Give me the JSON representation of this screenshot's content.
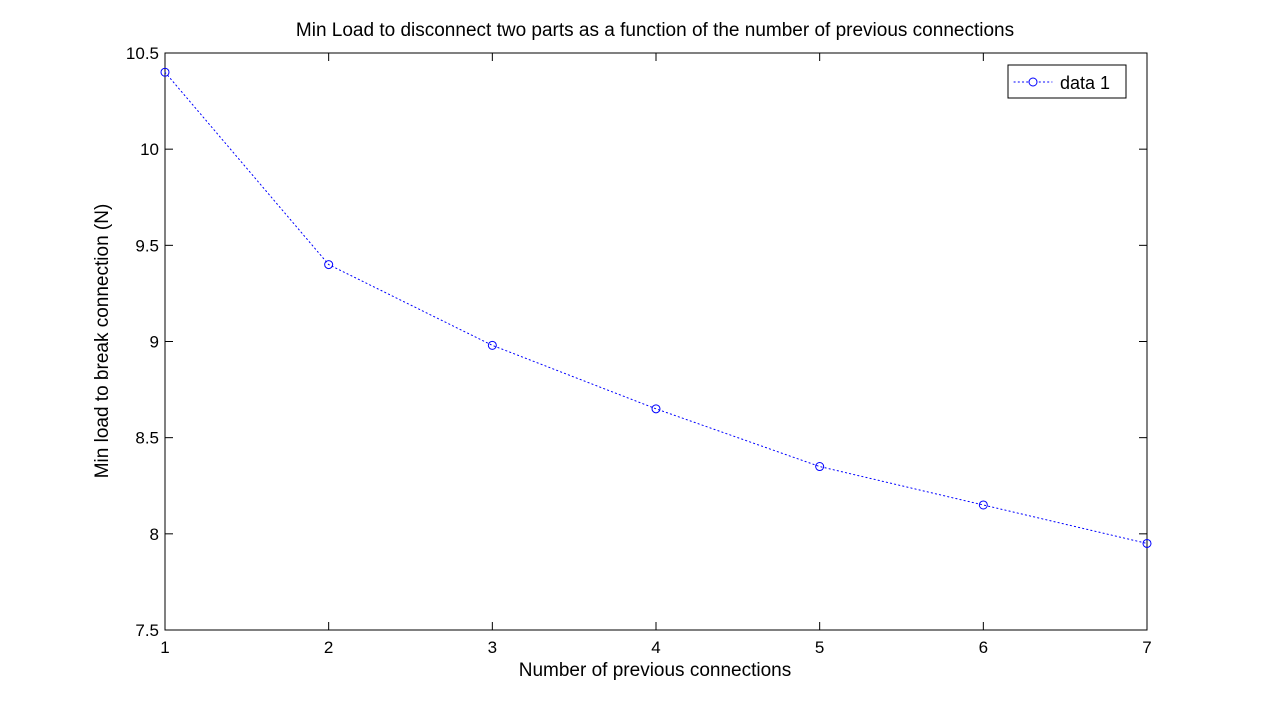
{
  "chart_data": {
    "type": "line",
    "title": "Min Load to disconnect two parts as a function of the number of previous connections",
    "xlabel": "Number of previous connections",
    "ylabel": "Min load to break connection (N)",
    "xlim": [
      1,
      7
    ],
    "ylim": [
      7.5,
      10.5
    ],
    "xticks": [
      "1",
      "2",
      "3",
      "4",
      "5",
      "6",
      "7"
    ],
    "yticks": [
      "7.5",
      "8",
      "8.5",
      "9",
      "9.5",
      "10",
      "10.5"
    ],
    "grid": false,
    "legend_position": "top-right",
    "line_color": "#0000ff",
    "line_style": "dotted",
    "marker": "circle",
    "series": [
      {
        "name": "data 1",
        "x": [
          1,
          2,
          3,
          4,
          5,
          6,
          7
        ],
        "y": [
          10.4,
          9.4,
          8.98,
          8.65,
          8.35,
          8.15,
          7.95
        ]
      }
    ]
  }
}
